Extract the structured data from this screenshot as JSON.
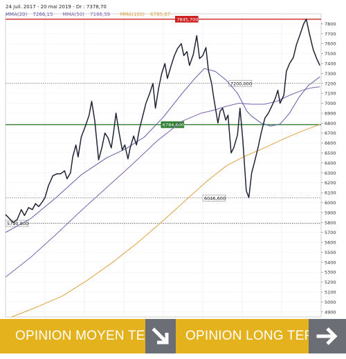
{
  "header": {
    "period": "24 juil. 2017 - 20 mai 2019 - Dr : 7378,70"
  },
  "legend": [
    {
      "name": "MMA(20)",
      "value": "7266,15",
      "color": "#5a5aa8"
    },
    {
      "name": "MMA(50)",
      "value": "7166,59",
      "color": "#7a5fb0"
    },
    {
      "name": "MMA(100)",
      "value": "6785,67",
      "color": "#e0a040"
    }
  ],
  "chart_data": {
    "type": "line",
    "ylim": [
      4850,
      7900
    ],
    "y_ticks": [
      4900,
      5000,
      5100,
      5200,
      5300,
      5400,
      5500,
      5600,
      5700,
      5800,
      5900,
      6000,
      6100,
      6200,
      6300,
      6400,
      6500,
      6600,
      6700,
      6800,
      6900,
      7000,
      7100,
      7200,
      7300,
      7400,
      7500,
      7600,
      7700,
      7800
    ],
    "y_tick_labels": [
      "4900",
      "5000",
      "5100",
      "5200",
      "5300",
      "5400",
      "5500",
      "5600",
      "5700",
      "5800",
      "5900",
      "6000",
      "6100",
      "6200",
      "6300",
      "6400",
      "6500",
      "6600",
      "6700",
      "6800",
      "6900",
      "7000",
      "7100",
      "7200",
      "7300",
      "7400",
      "7500",
      "7600",
      "7700",
      "7800"
    ],
    "x_range": [
      0,
      100
    ],
    "series": [
      {
        "name": "Dr",
        "color": "#1e2233",
        "width": 1.5,
        "points": [
          [
            0,
            5880
          ],
          [
            1.5,
            5830
          ],
          [
            2.5,
            5800
          ],
          [
            3.7,
            5830
          ],
          [
            5,
            5930
          ],
          [
            6,
            5870
          ],
          [
            7.3,
            5950
          ],
          [
            8.5,
            5930
          ],
          [
            9.5,
            5990
          ],
          [
            10.5,
            5960
          ],
          [
            11.5,
            6000
          ],
          [
            12.5,
            6050
          ],
          [
            13.6,
            6170
          ],
          [
            15,
            6270
          ],
          [
            16.3,
            6290
          ],
          [
            17.5,
            6290
          ],
          [
            18.7,
            6320
          ],
          [
            19.5,
            6240
          ],
          [
            20.6,
            6300
          ],
          [
            21.3,
            6460
          ],
          [
            22.3,
            6580
          ],
          [
            23,
            6460
          ],
          [
            24,
            6660
          ],
          [
            25.3,
            6770
          ],
          [
            26.5,
            6880
          ],
          [
            27.3,
            7020
          ],
          [
            28.3,
            6820
          ],
          [
            29.5,
            6430
          ],
          [
            30.5,
            6550
          ],
          [
            31.5,
            6700
          ],
          [
            32.5,
            6650
          ],
          [
            33.5,
            6550
          ],
          [
            34.3,
            6720
          ],
          [
            35,
            6900
          ],
          [
            36,
            6700
          ],
          [
            37,
            6530
          ],
          [
            37.8,
            6580
          ],
          [
            38.8,
            6440
          ],
          [
            39.5,
            6550
          ],
          [
            40.6,
            6670
          ],
          [
            41.5,
            6580
          ],
          [
            42.5,
            6750
          ],
          [
            43.7,
            6900
          ],
          [
            44.5,
            7000
          ],
          [
            45.7,
            7100
          ],
          [
            46.7,
            7200
          ],
          [
            47.5,
            6950
          ],
          [
            48.5,
            7150
          ],
          [
            49.5,
            7300
          ],
          [
            50.5,
            7400
          ],
          [
            51.3,
            7250
          ],
          [
            52.5,
            7380
          ],
          [
            53.5,
            7480
          ],
          [
            54.5,
            7550
          ],
          [
            55.7,
            7600
          ],
          [
            56.5,
            7480
          ],
          [
            57.5,
            7520
          ],
          [
            58.3,
            7380
          ],
          [
            59.5,
            7490
          ],
          [
            60.6,
            7680
          ],
          [
            61.5,
            7450
          ],
          [
            62.5,
            7480
          ],
          [
            63.5,
            7560
          ],
          [
            64.3,
            7330
          ],
          [
            65.3,
            7200
          ],
          [
            66,
            7050
          ],
          [
            67.3,
            6800
          ],
          [
            68,
            6920
          ],
          [
            68.8,
            6950
          ],
          [
            69.8,
            6830
          ],
          [
            70.5,
            6880
          ],
          [
            71.5,
            6500
          ],
          [
            72.3,
            6550
          ],
          [
            73.5,
            6680
          ],
          [
            74.3,
            6950
          ],
          [
            75.2,
            6630
          ],
          [
            76.3,
            6120
          ],
          [
            77.1,
            6050
          ],
          [
            78,
            6300
          ],
          [
            79,
            6420
          ],
          [
            80,
            6550
          ],
          [
            81,
            6700
          ],
          [
            82.2,
            6850
          ],
          [
            83.3,
            6900
          ],
          [
            84.2,
            6960
          ],
          [
            85.5,
            7050
          ],
          [
            86.3,
            7130
          ],
          [
            87,
            7000
          ],
          [
            88.2,
            7080
          ],
          [
            89,
            7320
          ],
          [
            90,
            7400
          ],
          [
            91.2,
            7460
          ],
          [
            92.2,
            7590
          ],
          [
            93.2,
            7680
          ],
          [
            94.5,
            7800
          ],
          [
            95.3,
            7846
          ],
          [
            96.3,
            7700
          ],
          [
            97.5,
            7540
          ],
          [
            98.6,
            7450
          ],
          [
            99.6,
            7380
          ]
        ]
      },
      {
        "name": "MMA(20)",
        "color": "#5a5aa8",
        "width": 1.0,
        "points": [
          [
            0,
            5700
          ],
          [
            8,
            5840
          ],
          [
            16,
            6050
          ],
          [
            24,
            6280
          ],
          [
            32,
            6450
          ],
          [
            38,
            6540
          ],
          [
            44,
            6660
          ],
          [
            50,
            6860
          ],
          [
            56,
            7100
          ],
          [
            60,
            7250
          ],
          [
            63,
            7350
          ],
          [
            66.5,
            7320
          ],
          [
            70,
            7230
          ],
          [
            73.5,
            7100
          ],
          [
            76.5,
            6920
          ],
          [
            78,
            6870
          ],
          [
            81,
            6800
          ],
          [
            84,
            6770
          ],
          [
            87,
            6790
          ],
          [
            90,
            6900
          ],
          [
            93,
            7060
          ],
          [
            96,
            7180
          ],
          [
            99.6,
            7266
          ]
        ]
      },
      {
        "name": "MMA(50)",
        "color": "#7a5fb0",
        "width": 1.0,
        "points": [
          [
            0,
            5250
          ],
          [
            8,
            5450
          ],
          [
            16,
            5680
          ],
          [
            24,
            5920
          ],
          [
            32,
            6150
          ],
          [
            40,
            6380
          ],
          [
            48,
            6620
          ],
          [
            56,
            6820
          ],
          [
            62,
            6900
          ],
          [
            66,
            6930
          ],
          [
            70,
            6970
          ],
          [
            74,
            7000
          ],
          [
            78,
            6990
          ],
          [
            82,
            6990
          ],
          [
            86,
            7020
          ],
          [
            90,
            7080
          ],
          [
            94,
            7130
          ],
          [
            97,
            7155
          ],
          [
            99.6,
            7166
          ]
        ]
      },
      {
        "name": "MMA(100)",
        "color": "#e0a040",
        "width": 1.0,
        "points": [
          [
            2,
            4850
          ],
          [
            10,
            4950
          ],
          [
            18,
            5060
          ],
          [
            26,
            5220
          ],
          [
            34,
            5400
          ],
          [
            42,
            5600
          ],
          [
            50,
            5820
          ],
          [
            58,
            6050
          ],
          [
            64,
            6220
          ],
          [
            70,
            6370
          ],
          [
            76,
            6470
          ],
          [
            82,
            6550
          ],
          [
            88,
            6640
          ],
          [
            94,
            6720
          ],
          [
            99.6,
            6786
          ]
        ]
      }
    ],
    "hlines": [
      {
        "value": 7845.7,
        "label": "7845,700",
        "style": "solid",
        "color": "#cc2020",
        "label_bg": "#cc2020",
        "label_fg": "#ffffff",
        "label_pos": "left-of-peak"
      },
      {
        "value": 7200,
        "label": "7200,000",
        "style": "dotted",
        "color": "#666666",
        "label_bg": "#ffffff",
        "label_fg": "#000000",
        "label_pos": "mid-right"
      },
      {
        "value": 6784.6,
        "label": "6784,600",
        "style": "solid",
        "color": "#2e7d2e",
        "label_bg": "#2e7d2e",
        "label_fg": "#ffffff",
        "label_pos": "mid"
      },
      {
        "value": 6046.6,
        "label": "6046,600",
        "style": "dotted",
        "color": "#666666",
        "label_bg": "#ffffff",
        "label_fg": "#000000",
        "label_pos": "mid"
      },
      {
        "value": 5790.8,
        "label": "5790,800",
        "style": "dotted",
        "color": "#666666",
        "label_bg": "#ffffff",
        "label_fg": "#000000",
        "label_pos": "left"
      }
    ]
  },
  "banner": {
    "mid_term_label": "OPINION MOYEN TERME",
    "long_term_label": "OPINION LONG TERME",
    "mid_term_icon": "arrow-down-right-icon",
    "long_term_icon": "arrow-right-icon",
    "panel_color": "#e3b21c",
    "icon_box_color": "#6b6f75"
  }
}
